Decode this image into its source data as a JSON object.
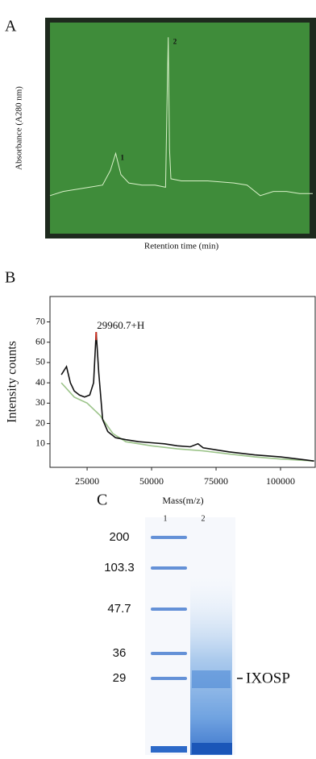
{
  "chart_data": [
    {
      "type": "line",
      "panel": "A",
      "y_label": "Absorbance (A280 nm)",
      "x_label": "Retention time (min)",
      "annotations": [
        "1",
        "2"
      ],
      "background": "#3f8c3a",
      "xlim": [
        0,
        100
      ],
      "ylim": [
        0,
        100
      ],
      "series": [
        {
          "color": "#d8f0c8",
          "x": [
            0,
            5,
            10,
            15,
            20,
            23,
            25,
            27,
            30,
            35,
            40,
            44,
            44.5,
            45,
            45.5,
            46,
            50,
            60,
            70,
            75,
            80,
            85,
            90,
            95,
            100
          ],
          "values": [
            18,
            20,
            21,
            22,
            23,
            30,
            38,
            28,
            24,
            23,
            23,
            22,
            60,
            93,
            40,
            26,
            25,
            25,
            24,
            23,
            18,
            20,
            20,
            19,
            19
          ]
        }
      ]
    },
    {
      "type": "line",
      "panel": "B",
      "y_label": "Intensity counts",
      "x_label": "Mass(m/z)",
      "annotations": [
        "29960.7+H"
      ],
      "xlim": [
        10600,
        113750
      ],
      "ylim": [
        -1.6,
        82.5
      ],
      "xticks": [
        25000,
        50000,
        75000,
        100000
      ],
      "yticks": [
        10,
        20,
        30,
        40,
        50,
        60,
        70
      ],
      "series": [
        {
          "color": "#9cc48a",
          "x": [
            15000,
            20000,
            25000,
            30000,
            35000,
            40000,
            50000,
            60000,
            70000,
            80000,
            90000,
            100000,
            113000
          ],
          "values": [
            40,
            33,
            30,
            24,
            15,
            11,
            9,
            7.5,
            6.5,
            5,
            3.5,
            2.5,
            1.5
          ]
        },
        {
          "color": "#111111",
          "x": [
            15000,
            17000,
            18500,
            20000,
            22000,
            24000,
            26000,
            27500,
            28500,
            29500,
            31000,
            33000,
            36000,
            40000,
            45000,
            50000,
            55000,
            60000,
            65000,
            68000,
            70000,
            75000,
            80000,
            90000,
            100000,
            110000,
            113000
          ],
          "values": [
            44,
            48,
            40,
            36,
            34,
            33,
            34,
            40,
            65,
            45,
            22,
            16,
            13,
            12,
            11,
            10.5,
            10,
            9,
            8.5,
            10,
            8,
            7,
            6,
            4.5,
            3.5,
            2,
            1.5
          ]
        }
      ]
    }
  ],
  "gel": {
    "panel": "C",
    "lanes": [
      "1",
      "2"
    ],
    "markers": [
      "200",
      "103.3",
      "47.7",
      "36",
      "29"
    ],
    "band_label": "IXOSP"
  }
}
